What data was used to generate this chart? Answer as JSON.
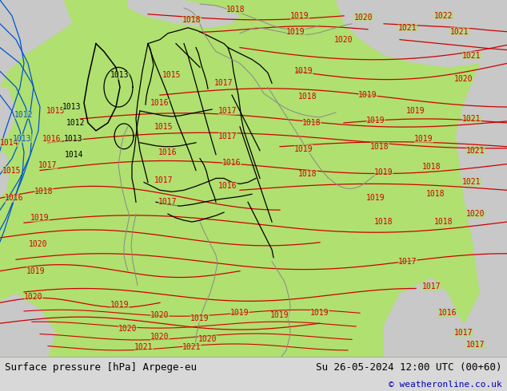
{
  "title_left": "Surface pressure [hPa] Arpege-eu",
  "title_right": "Su 26-05-2024 12:00 UTC (00+60)",
  "copyright": "© weatheronline.co.uk",
  "bg_green": "#b0e070",
  "bg_gray": "#c8c8c8",
  "red": "#cc0000",
  "black": "#000000",
  "blue": "#0055cc",
  "bar_bg": "#d8d8d8",
  "text_black": "#000000",
  "text_blue": "#0000bb",
  "figsize": [
    6.34,
    4.9
  ],
  "dpi": 100,
  "fontsize_label": 9,
  "fontsize_copy": 8,
  "fontsize_isobar": 7
}
